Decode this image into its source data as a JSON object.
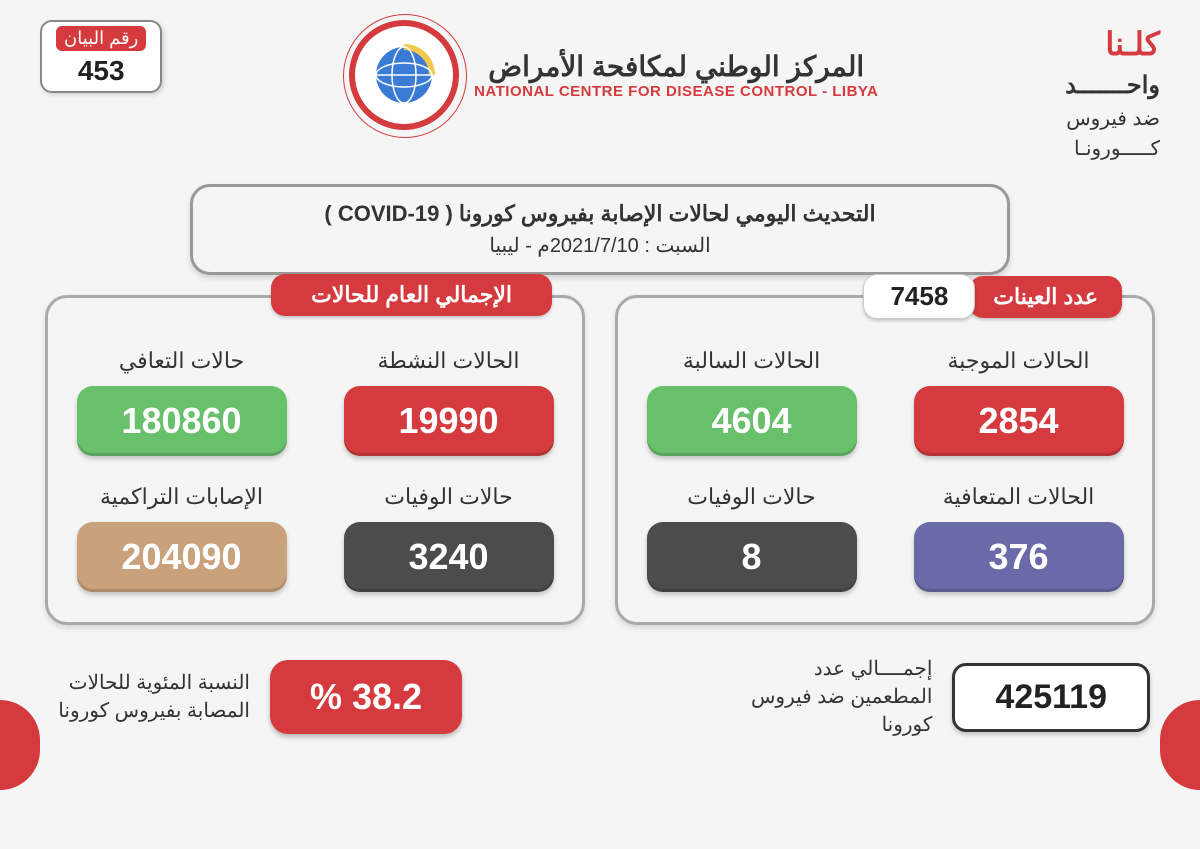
{
  "colors": {
    "red": "#d43a3e",
    "green": "#68c06b",
    "dark": "#4c4c4c",
    "purple": "#6a6aa8",
    "tan": "#c9a27c",
    "white_text": "#ffffff"
  },
  "header": {
    "bulletin_label": "رقم البيان",
    "bulletin_number": "453",
    "org_ar": "المركز الوطني لمكافحة الأمراض",
    "org_en": "NATIONAL CENTRE FOR DISEASE CONTROL - LIBYA",
    "slogan_l1": "كلـنا",
    "slogan_l2": "واحـــــــد",
    "slogan_l3": "ضد فيروس",
    "slogan_l4": "كـــــورونـا"
  },
  "title": {
    "line1": "التحديث اليومي لحالات الإصابة بفيروس كورونا ( COVID-19 )",
    "line2": "السبت : 2021/7/10م - ليبيا"
  },
  "right_panel": {
    "header_label": "عدد العينات",
    "header_value": "7458",
    "stats": [
      {
        "label": "الحالات الموجبة",
        "value": "2854",
        "colorKey": "red"
      },
      {
        "label": "الحالات السالبة",
        "value": "4604",
        "colorKey": "green"
      },
      {
        "label": "الحالات المتعافية",
        "value": "376",
        "colorKey": "purple"
      },
      {
        "label": "حالات الوفيات",
        "value": "8",
        "colorKey": "dark"
      }
    ]
  },
  "left_panel": {
    "header_label": "الإجمالي العام للحالات",
    "stats": [
      {
        "label": "الحالات النشطة",
        "value": "19990",
        "colorKey": "red"
      },
      {
        "label": "حالات التعافي",
        "value": "180860",
        "colorKey": "green"
      },
      {
        "label": "حالات الوفيات",
        "value": "3240",
        "colorKey": "dark"
      },
      {
        "label": "الإصابات التراكمية",
        "value": "204090",
        "colorKey": "tan"
      }
    ]
  },
  "footer": {
    "pct_label": "النسبة المئوية للحالات المصابة بفيروس كورونا",
    "pct_value": "38.2 %",
    "vax_label": "إجمــــالي عدد المطعمين ضد فيروس كورونا",
    "vax_value": "425119"
  }
}
